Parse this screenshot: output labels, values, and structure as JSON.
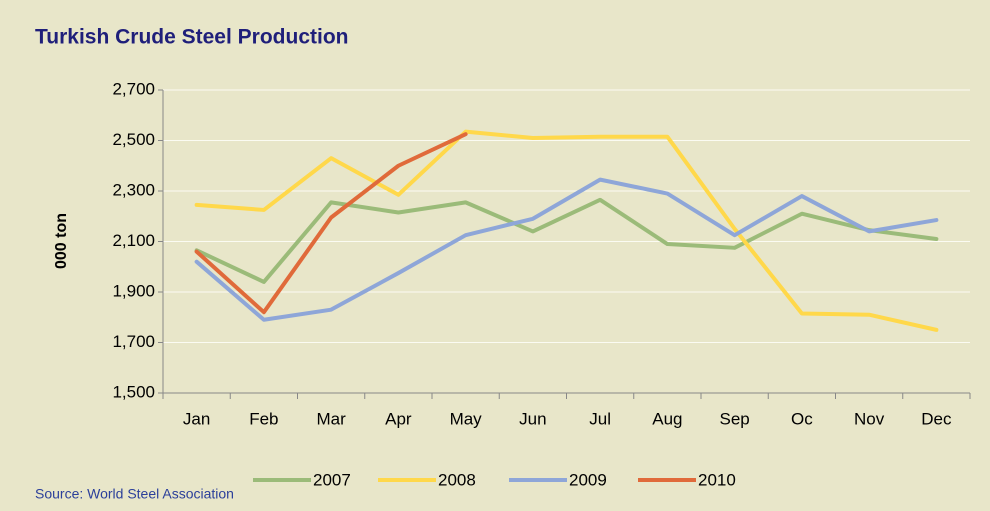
{
  "chart_data": {
    "type": "line",
    "title": "Turkish Crude Steel Production",
    "y_label": "000 ton",
    "source": "Source: World Steel Association",
    "categories": [
      "Jan",
      "Feb",
      "Mar",
      "Apr",
      "May",
      "Jun",
      "Jul",
      "Aug",
      "Sep",
      "Oc",
      "Nov",
      "Dec"
    ],
    "series": [
      {
        "name": "2007",
        "color": "#9bbb79",
        "values": [
          2065,
          1940,
          2255,
          2215,
          2255,
          2140,
          2265,
          2090,
          2075,
          2210,
          2145,
          2110
        ]
      },
      {
        "name": "2008",
        "color": "#ffd84a",
        "values": [
          2245,
          2225,
          2430,
          2285,
          2535,
          2510,
          2515,
          2515,
          2150,
          1815,
          1810,
          1750
        ]
      },
      {
        "name": "2009",
        "color": "#8ea6d8",
        "values": [
          2020,
          1790,
          1830,
          1975,
          2125,
          2190,
          2345,
          2290,
          2125,
          2280,
          2140,
          2185
        ]
      },
      {
        "name": "2010",
        "color": "#e06a3a",
        "values": [
          2060,
          1820,
          2195,
          2400,
          2525,
          null,
          null,
          null,
          null,
          null,
          null,
          null
        ]
      }
    ],
    "ylim": [
      1500,
      2700
    ],
    "yticks": [
      {
        "value": 1500,
        "label": "1,500"
      },
      {
        "value": 1700,
        "label": "1,700"
      },
      {
        "value": 1900,
        "label": "1,900"
      },
      {
        "value": 2100,
        "label": "2,100"
      },
      {
        "value": 2300,
        "label": "2,300"
      },
      {
        "value": 2500,
        "label": "2,500"
      },
      {
        "value": 2700,
        "label": "2,700"
      }
    ],
    "grid": true,
    "legend": "bottom"
  }
}
